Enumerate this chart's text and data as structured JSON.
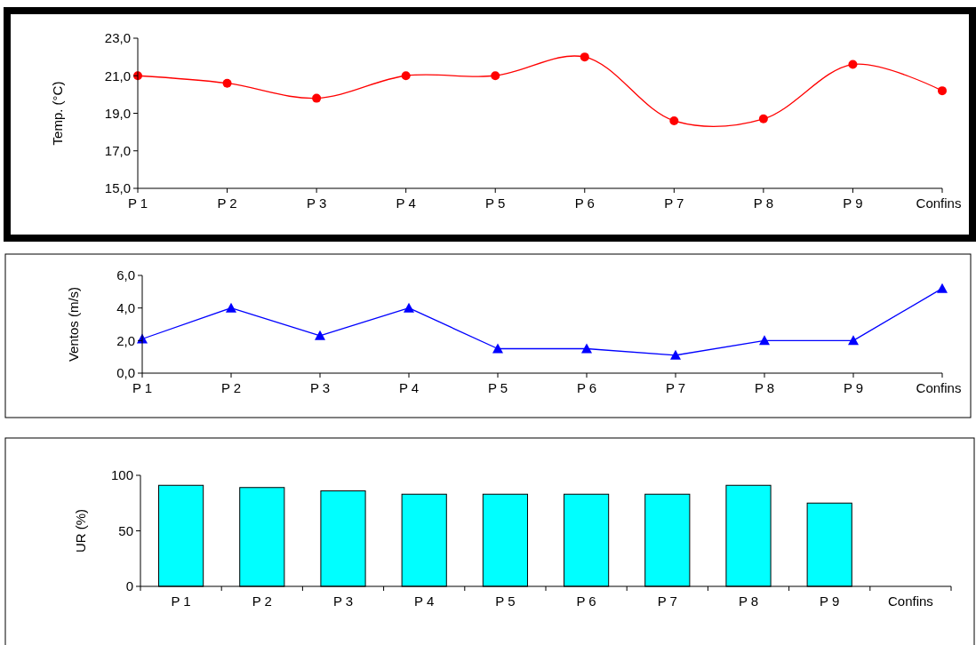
{
  "chart_data": [
    {
      "type": "line",
      "ylabel": "Temp. (°C)",
      "categories": [
        "P 1",
        "P 2",
        "P 3",
        "P 4",
        "P 5",
        "P 6",
        "P 7",
        "P 8",
        "P 9",
        "Confins"
      ],
      "series": [
        {
          "color": "#ff0000",
          "values": [
            21.0,
            20.6,
            19.8,
            21.0,
            21.0,
            22.0,
            18.6,
            18.7,
            21.6,
            20.2
          ]
        }
      ],
      "ylim": [
        15,
        23
      ],
      "yticks": [
        {
          "value": 15,
          "label": "15,0"
        },
        {
          "value": 17,
          "label": "17,0"
        },
        {
          "value": 19,
          "label": "19,0"
        },
        {
          "value": 21,
          "label": "21,0"
        },
        {
          "value": 23,
          "label": "23,0"
        }
      ],
      "marker": "circle",
      "grid": false
    },
    {
      "type": "line",
      "ylabel": "Ventos (m/s)",
      "categories": [
        "P 1",
        "P 2",
        "P 3",
        "P 4",
        "P 5",
        "P 6",
        "P 7",
        "P 8",
        "P 9",
        "Confins"
      ],
      "series": [
        {
          "color": "#0000ff",
          "values": [
            2.1,
            4.0,
            2.3,
            4.0,
            1.5,
            1.5,
            1.1,
            2.0,
            2.0,
            5.2
          ]
        }
      ],
      "ylim": [
        0,
        6
      ],
      "yticks": [
        {
          "value": 0,
          "label": "0,0"
        },
        {
          "value": 2,
          "label": "2,0"
        },
        {
          "value": 4,
          "label": "4,0"
        },
        {
          "value": 6,
          "label": "6,0"
        }
      ],
      "marker": "triangle",
      "grid": false
    },
    {
      "type": "bar",
      "ylabel": "UR (%)",
      "categories": [
        "P 1",
        "P 2",
        "P 3",
        "P 4",
        "P 5",
        "P 6",
        "P 7",
        "P 8",
        "P 9",
        "Confins"
      ],
      "series": [
        {
          "color": "#00ffff",
          "values": [
            91,
            89,
            86,
            83,
            83,
            83,
            83,
            91,
            75,
            null
          ]
        }
      ],
      "ylim": [
        0,
        100
      ],
      "yticks": [
        0,
        50,
        100
      ],
      "grid": false
    }
  ]
}
